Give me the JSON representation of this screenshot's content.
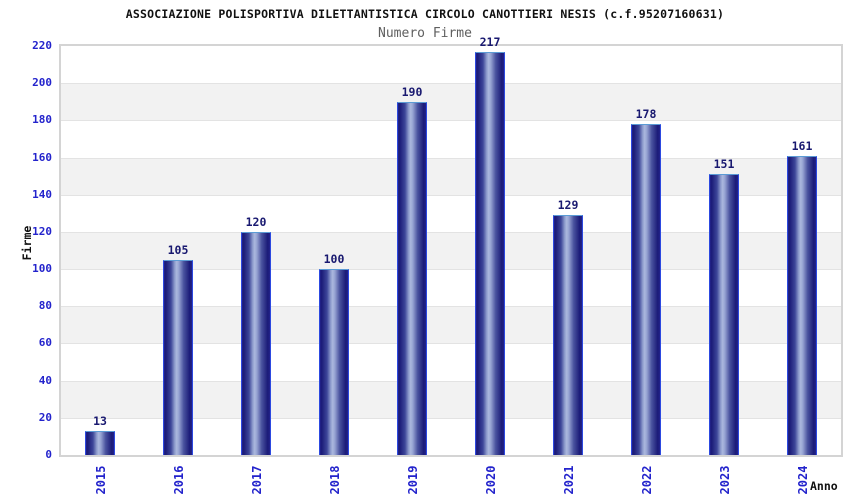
{
  "chart_data": {
    "type": "bar",
    "title": "ASSOCIAZIONE POLISPORTIVA DILETTANTISTICA CIRCOLO CANOTTIERI NESIS (c.f.95207160631)",
    "subtitle": "Numero Firme",
    "xlabel": "Anno",
    "ylabel": "Firme",
    "categories": [
      "2015",
      "2016",
      "2017",
      "2018",
      "2019",
      "2020",
      "2021",
      "2022",
      "2023",
      "2024"
    ],
    "values": [
      13,
      105,
      120,
      100,
      190,
      217,
      129,
      178,
      151,
      161
    ],
    "ylim": [
      0,
      220
    ],
    "ytick_step": 20,
    "legend": null,
    "grid": "horizontal-bands-alternating",
    "colors": {
      "tick_label": "#2323cc",
      "value_label": "#191970",
      "subtitle": "#5f5f5f",
      "title": "#111111",
      "band_gray": "#f2f2f2",
      "band_white": "#ffffff",
      "grid_line": "#e3e3e3",
      "plot_border": "#d4d4d4",
      "bar_dark": "#1b1b78",
      "bar_edge": "#23238a",
      "bar_mid": "#8d9bcc",
      "bar_light": "#abb8de",
      "bar_border_side": "#2c49e0",
      "bar_border_top": "#5b9bd5"
    }
  }
}
